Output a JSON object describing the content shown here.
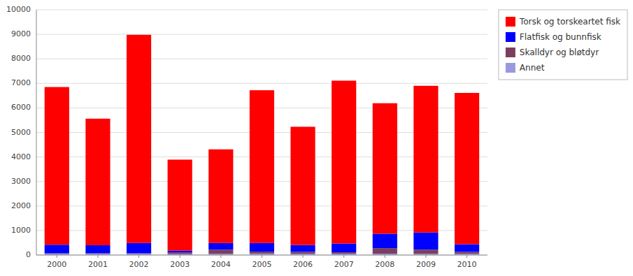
{
  "chart_data": {
    "type": "bar",
    "stacked": true,
    "categories": [
      "2000",
      "2001",
      "2002",
      "2003",
      "2004",
      "2005",
      "2006",
      "2007",
      "2008",
      "2009",
      "2010"
    ],
    "series": [
      {
        "name": "Torsk og torskeartet fisk",
        "color": "#FF0000",
        "values": [
          6430,
          5160,
          8490,
          3710,
          3820,
          6230,
          4820,
          6640,
          5320,
          5980,
          6170
        ]
      },
      {
        "name": "Flatfisk og bunnfisk",
        "color": "#0000FF",
        "values": [
          350,
          330,
          420,
          80,
          270,
          350,
          280,
          360,
          590,
          700,
          310
        ]
      },
      {
        "name": "Skalldyr og bløtdyr",
        "color": "#7B3F5E",
        "values": [
          20,
          20,
          20,
          60,
          170,
          80,
          80,
          60,
          230,
          170,
          80
        ]
      },
      {
        "name": "Annet",
        "color": "#9999DD",
        "values": [
          50,
          50,
          50,
          40,
          50,
          60,
          50,
          50,
          50,
          50,
          50
        ]
      }
    ],
    "ylim": [
      0,
      10000
    ],
    "yticks": [
      0,
      1000,
      2000,
      3000,
      4000,
      5000,
      6000,
      7000,
      8000,
      9000,
      10000
    ],
    "grid": true,
    "legend": "right"
  }
}
